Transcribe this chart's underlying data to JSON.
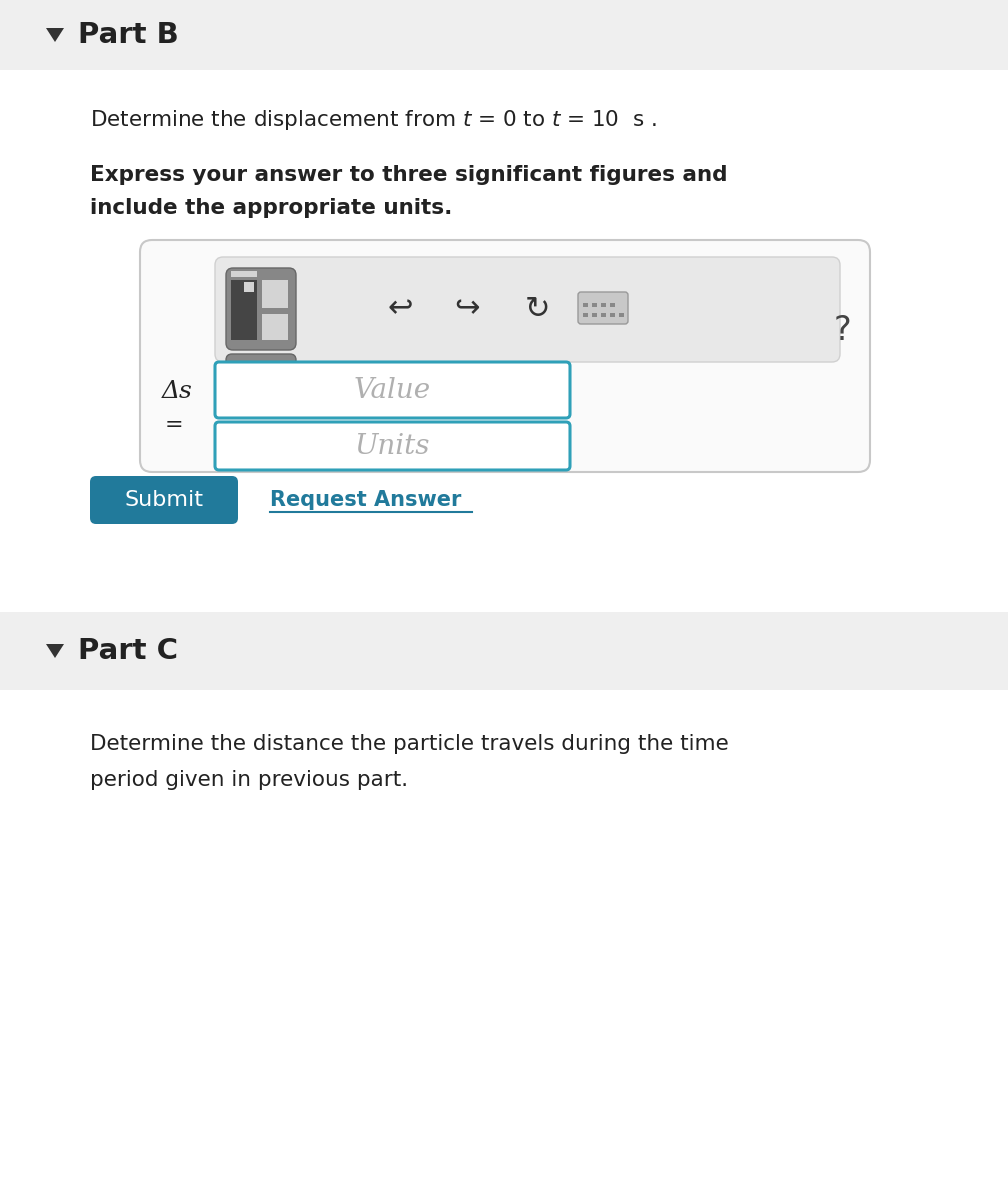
{
  "bg_color": "#ffffff",
  "header_bg": "#efefef",
  "part_b_label": "Part B",
  "part_c_label": "Part C",
  "bold_line1": "Express your answer to three significant figures and",
  "bold_line2": "include the appropriate units.",
  "value_placeholder": "Value",
  "units_placeholder": "Units",
  "submit_label": "Submit",
  "request_answer_label": "Request Answer",
  "submit_bg": "#217a9b",
  "submit_text_color": "#ffffff",
  "request_answer_color": "#217a9b",
  "input_border_color": "#2fa0b8",
  "input_placeholder_color": "#aaaaaa",
  "box_border_color": "#cccccc",
  "inner_box_bg": "#e8e8e8",
  "toolbar_icon_bg": "#878787",
  "question_mark_color": "#444444",
  "part_c_text_1": "Determine the distance the particle travels during the time",
  "part_c_text_2": "period given in previous part.",
  "arrow_color": "#222222",
  "delta_color": "#222222",
  "text_color": "#222222"
}
